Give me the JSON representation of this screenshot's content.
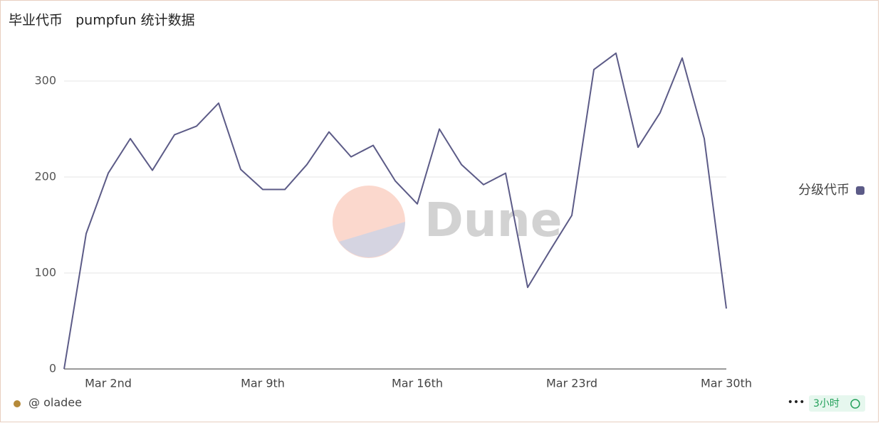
{
  "chart_data": {
    "type": "line",
    "title": "毕业代币   pumpfun 统计数据",
    "categories": [
      null,
      null,
      "Mar 2nd",
      null,
      null,
      null,
      null,
      null,
      null,
      "Mar 9th",
      null,
      null,
      null,
      null,
      null,
      null,
      "Mar 16th",
      null,
      null,
      null,
      null,
      null,
      null,
      "Mar 23rd",
      null,
      null,
      null,
      null,
      null,
      null,
      "Mar 30th"
    ],
    "series": [
      {
        "name": "分级代币",
        "color": "#5c5b87",
        "values": [
          0,
          141,
          204,
          240,
          207,
          244,
          253,
          277,
          208,
          187,
          187,
          213,
          247,
          221,
          233,
          196,
          172,
          250,
          213,
          192,
          204,
          85,
          123,
          160,
          312,
          329,
          231,
          267,
          324,
          240,
          63
        ]
      }
    ],
    "ylim": [
      0,
      350
    ],
    "yticks": [
      0,
      100,
      200,
      300
    ],
    "grid": true,
    "legend": "right",
    "watermark": "Dune"
  },
  "footer": {
    "author": "@ oladee",
    "badge": "3小时"
  }
}
